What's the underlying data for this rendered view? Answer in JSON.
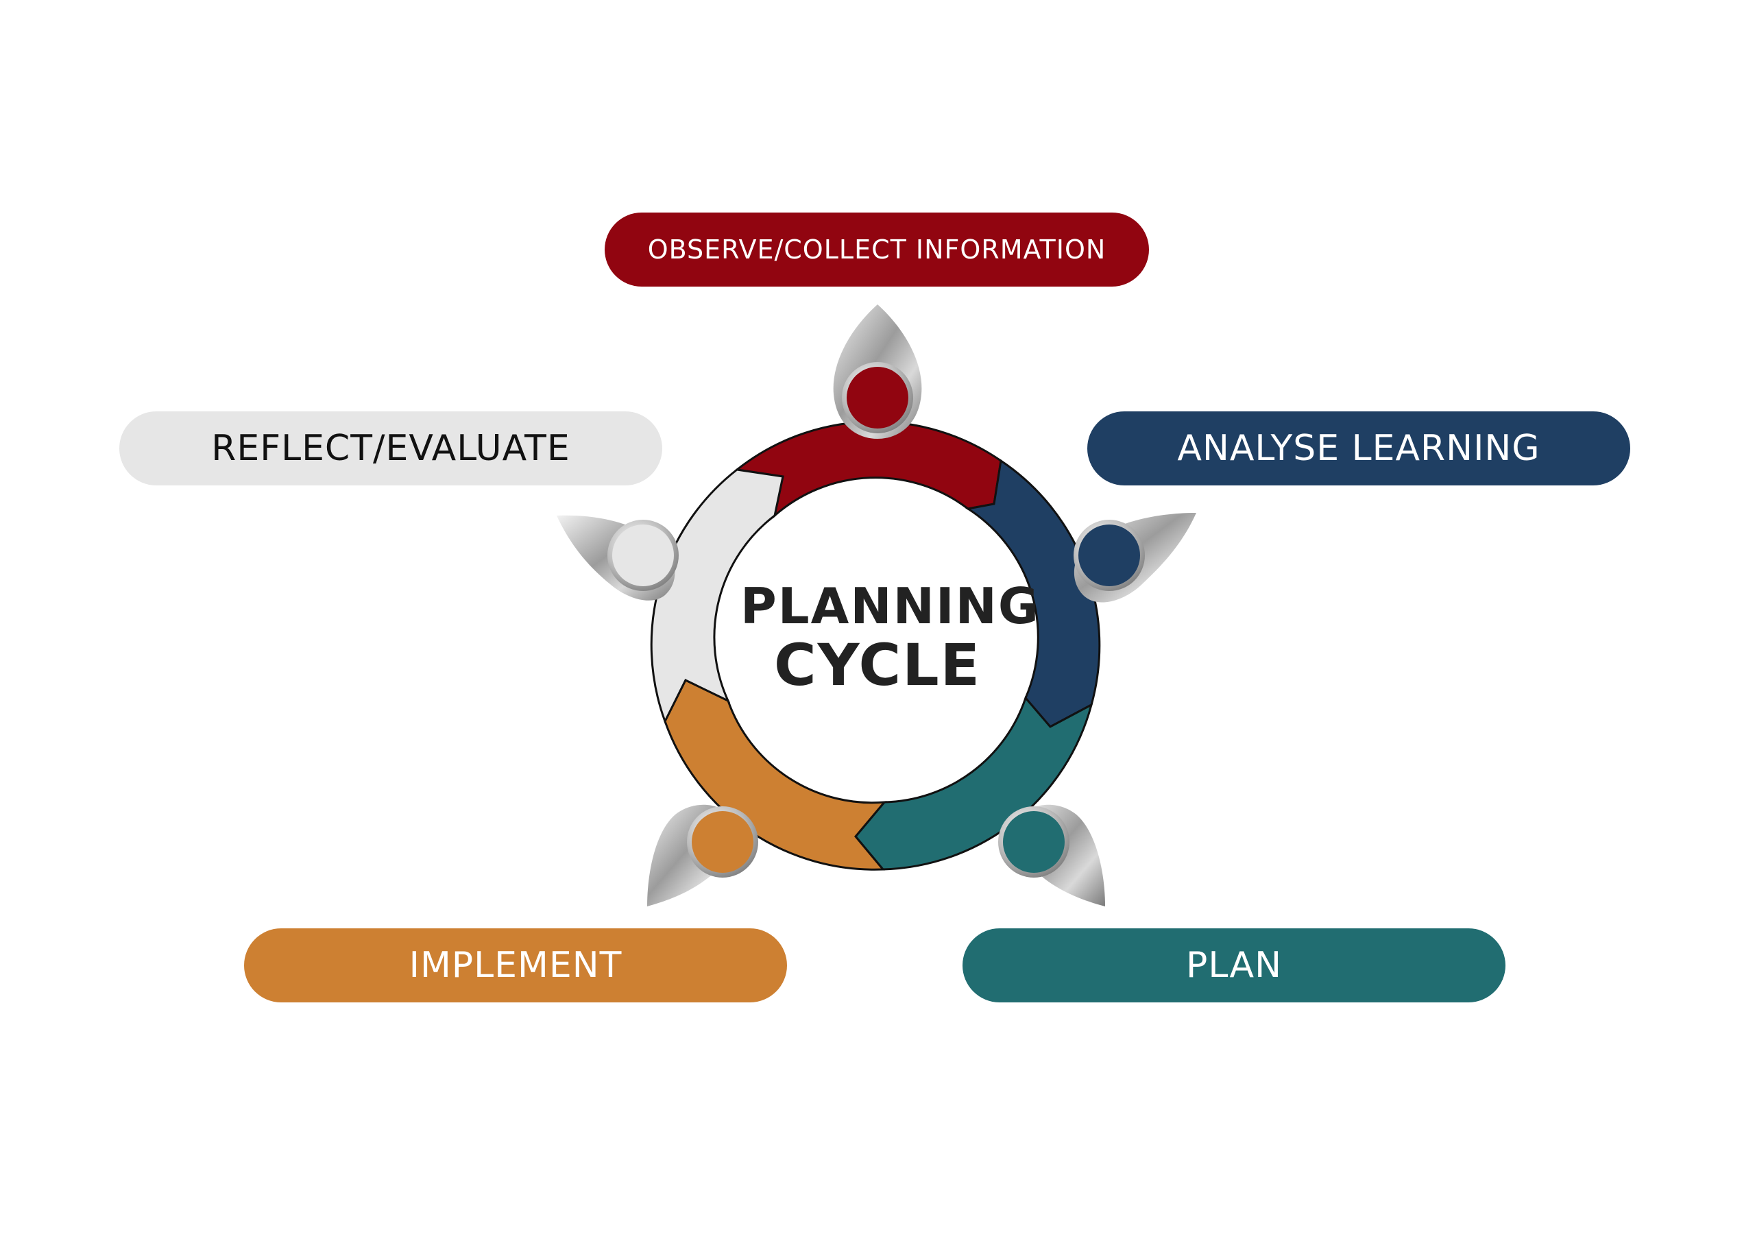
{
  "center": {
    "line1": "PLANNING",
    "line2": "CYCLE"
  },
  "stages": [
    {
      "label": "OBSERVE/COLLECT INFORMATION",
      "color": "#910510"
    },
    {
      "label": "ANALYSE LEARNING",
      "color": "#1f3f63"
    },
    {
      "label": "PLAN",
      "color": "#216d71"
    },
    {
      "label": "IMPLEMENT",
      "color": "#cd8032"
    },
    {
      "label": "REFLECT/EVALUATE",
      "color": "#e6e6e6"
    }
  ],
  "icons": [
    "person-icon",
    "person-icon",
    "person-icon",
    "person-icon",
    "person-icon"
  ]
}
